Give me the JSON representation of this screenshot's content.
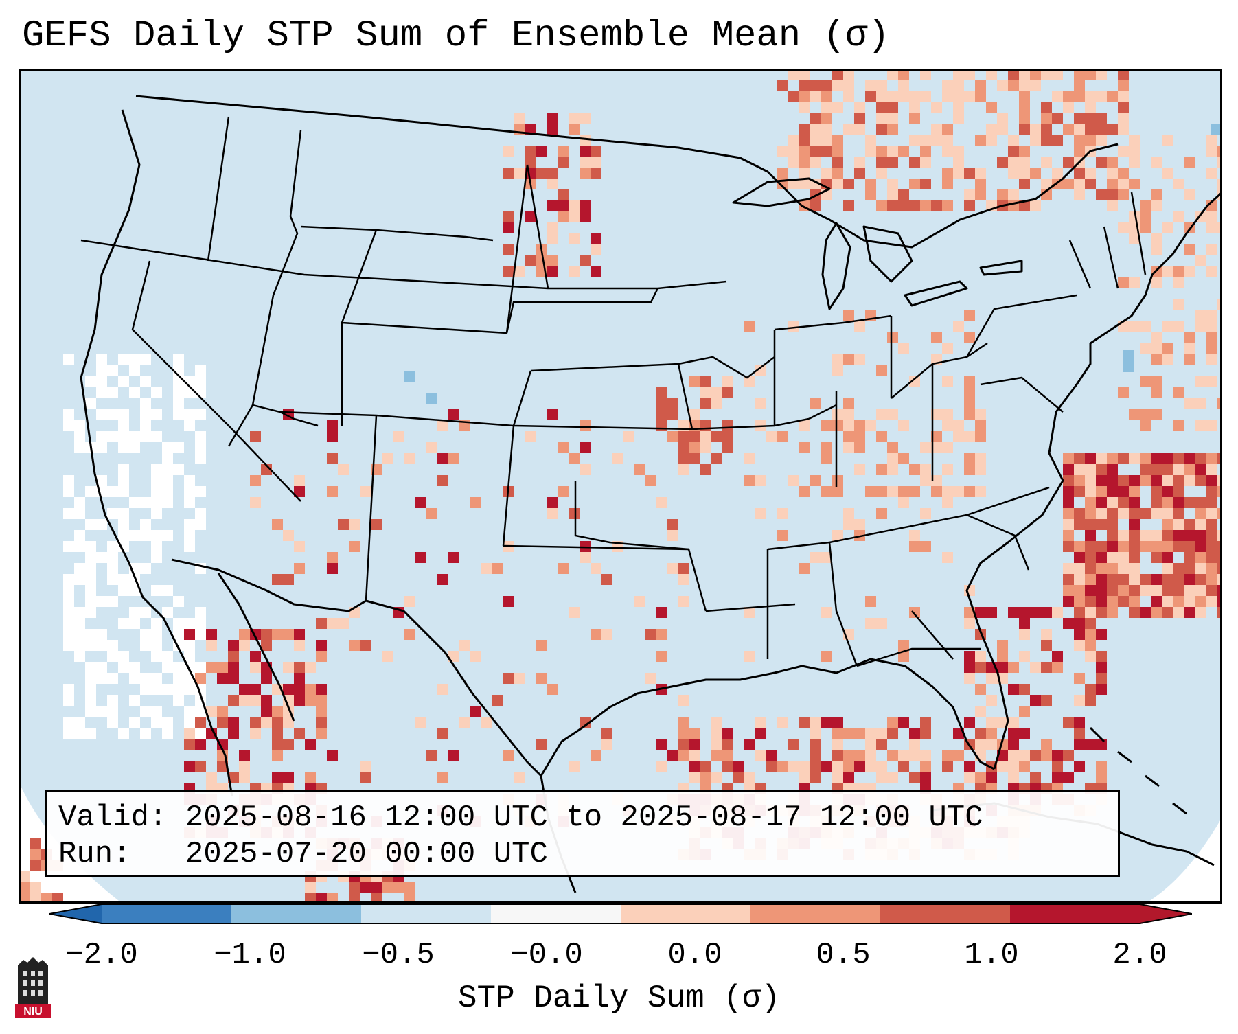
{
  "title": "GEFS Daily STP Sum of Ensemble Mean (σ)",
  "annotation": {
    "valid_line": "Valid: 2025-08-16 12:00 UTC to 2025-08-17 12:00 UTC",
    "run_line": "Run:   2025-07-20 00:00 UTC"
  },
  "colorbar": {
    "label": "STP Daily Sum (σ)",
    "ticks": [
      "−2.0",
      "−1.0",
      "−0.5",
      "−0.0",
      "0.0",
      "0.5",
      "1.0",
      "2.0"
    ],
    "bins": [
      {
        "color": "#3b7fbf"
      },
      {
        "color": "#8cbfde"
      },
      {
        "color": "#d1e5f1"
      },
      {
        "color": "#f7f7f7"
      },
      {
        "color": "#fbd0ba"
      },
      {
        "color": "#ee9677"
      },
      {
        "color": "#d05a4a"
      },
      {
        "color": "#b5162d"
      }
    ],
    "extend_low_color": "#2166ac",
    "extend_high_color": "#b2182b"
  },
  "map": {
    "background_color": "#d1e5f1",
    "neutral_color": "#ffffff",
    "features": [
      "contiguous-united-states",
      "canada",
      "mexico",
      "gulf-of-mexico",
      "atlantic-ocean",
      "pacific-ocean",
      "cuba",
      "bahamas",
      "great-lakes"
    ]
  },
  "chart_data": {
    "type": "heatmap",
    "title": "GEFS Daily STP Sum of Ensemble Mean (σ)",
    "units": "σ",
    "bounds": [
      -2.0,
      -1.0,
      -0.5,
      -0.0,
      0.0,
      0.5,
      1.0,
      2.0
    ],
    "regions": [
      {
        "name": "Gulf of Mexico",
        "value_range": [
          0.5,
          2.0
        ]
      },
      {
        "name": "Western Atlantic off Carolinas",
        "value_range": [
          1.0,
          2.0
        ]
      },
      {
        "name": "Baja California",
        "value_range": [
          1.0,
          2.0
        ]
      },
      {
        "name": "Southern Canada / Northern Plains",
        "value_range": [
          0.5,
          1.0
        ]
      },
      {
        "name": "Upper Midwest (Iowa)",
        "value_range": [
          1.0,
          2.0
        ]
      },
      {
        "name": "Eastern Pacific offshore California",
        "value_range": [
          -0.0,
          0.0
        ]
      },
      {
        "name": "Interior CONUS",
        "value_range": [
          -0.5,
          -0.0
        ]
      }
    ]
  },
  "logo": {
    "text": "NIU"
  }
}
